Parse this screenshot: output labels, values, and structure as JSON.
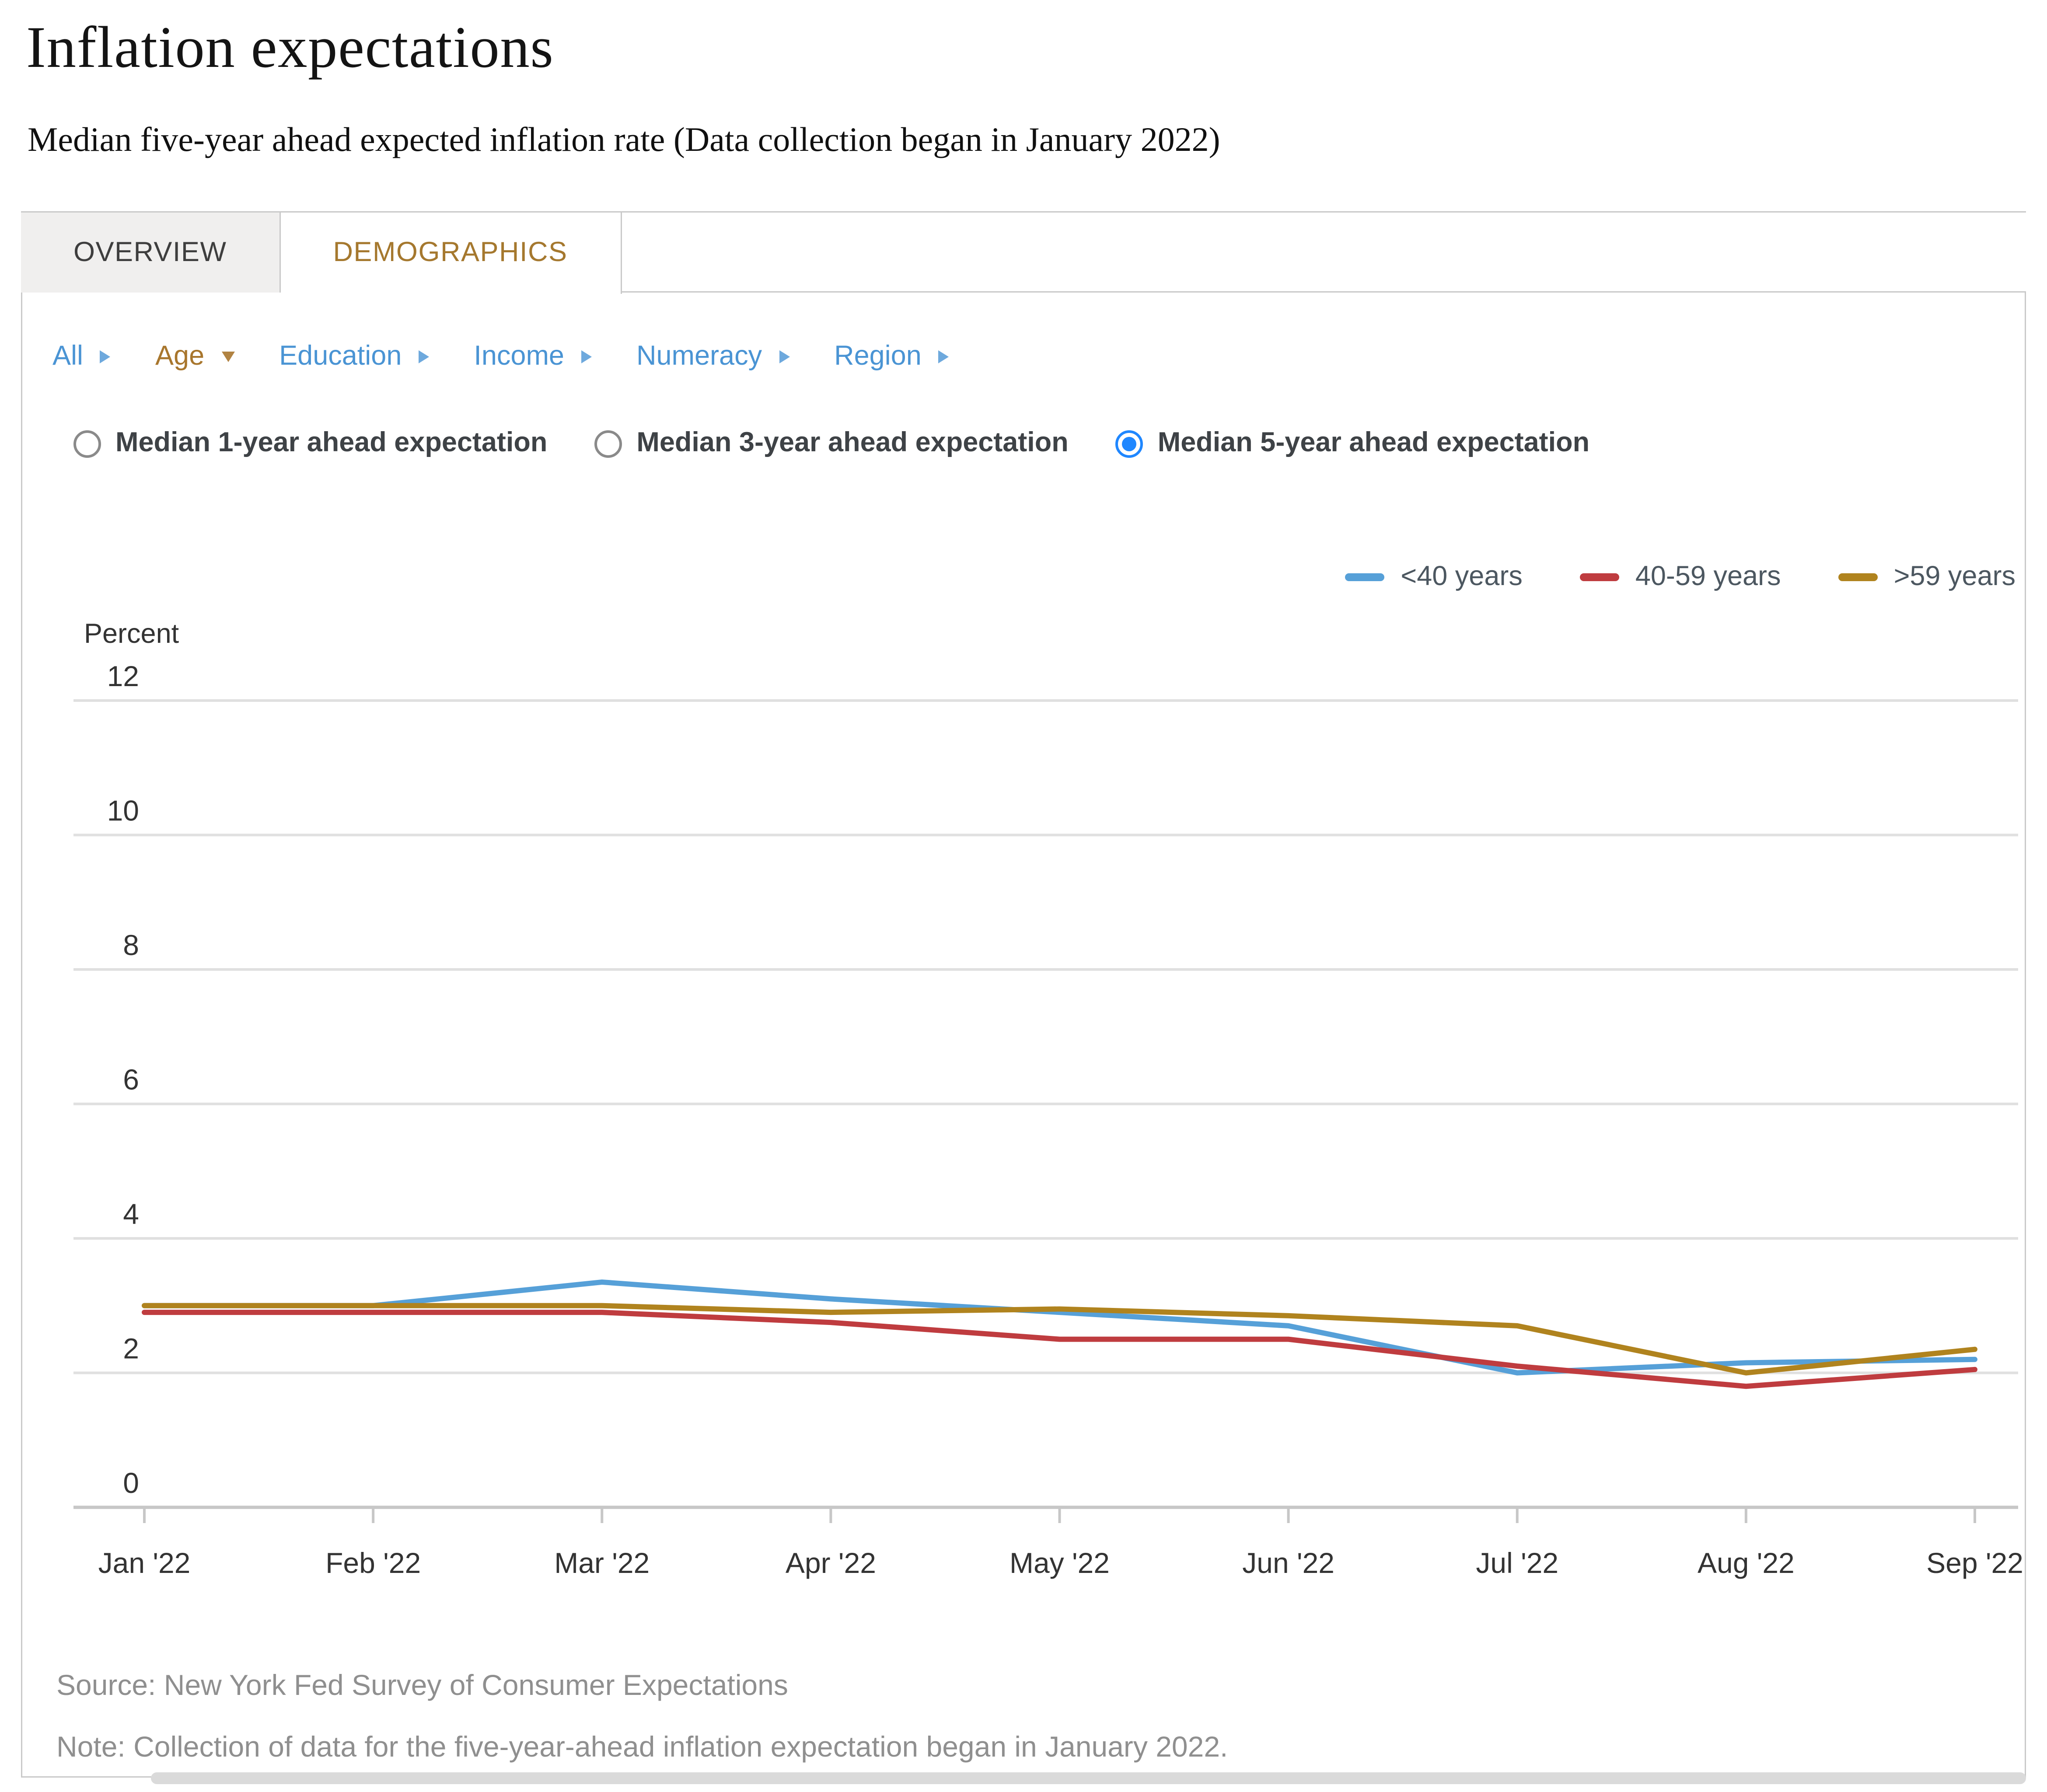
{
  "page": {
    "title": "Inflation expectations",
    "subtitle": "Median five-year ahead expected inflation rate (Data collection began in January 2022)"
  },
  "tabs": [
    {
      "label": "OVERVIEW",
      "active": false
    },
    {
      "label": "DEMOGRAPHICS",
      "active": true
    }
  ],
  "filters": {
    "items": [
      {
        "label": "All",
        "active": false,
        "arrow": "right"
      },
      {
        "label": "Age",
        "active": true,
        "arrow": "down"
      },
      {
        "label": "Education",
        "active": false,
        "arrow": "right"
      },
      {
        "label": "Income",
        "active": false,
        "arrow": "right"
      },
      {
        "label": "Numeracy",
        "active": false,
        "arrow": "right"
      },
      {
        "label": "Region",
        "active": false,
        "arrow": "right"
      }
    ],
    "link_color": "#4a94d4",
    "active_color": "#a8762d"
  },
  "radios": {
    "options": [
      {
        "label": "Median 1-year ahead expectation",
        "selected": false
      },
      {
        "label": "Median 3-year ahead expectation",
        "selected": false
      },
      {
        "label": "Median 5-year ahead expectation",
        "selected": true
      }
    ],
    "selected_color": "#1f87ff"
  },
  "legend": [
    {
      "label": "<40 years",
      "color": "#56a0d8"
    },
    {
      "label": "40-59 years",
      "color": "#bf3c3f"
    },
    {
      "label": ">59 years",
      "color": "#b0831e"
    }
  ],
  "chart_data": {
    "type": "line",
    "title": "",
    "xlabel": "",
    "ylabel": "Percent",
    "x_categories": [
      "Jan '22",
      "Feb '22",
      "Mar '22",
      "Apr '22",
      "May '22",
      "Jun '22",
      "Jul '22",
      "Aug '22",
      "Sep '22"
    ],
    "series": [
      {
        "name": "<40 years",
        "color": "#56a0d8",
        "values": [
          3.0,
          3.0,
          3.35,
          3.1,
          2.9,
          2.7,
          2.0,
          2.15,
          2.2
        ]
      },
      {
        "name": "40-59 years",
        "color": "#bf3c3f",
        "values": [
          2.9,
          2.9,
          2.9,
          2.75,
          2.5,
          2.5,
          2.1,
          1.8,
          2.05
        ]
      },
      {
        "name": ">59 years",
        "color": "#b0831e",
        "values": [
          3.0,
          3.0,
          3.0,
          2.9,
          2.95,
          2.85,
          2.7,
          2.0,
          2.35
        ]
      }
    ],
    "ylim": [
      0,
      12
    ],
    "ytick_step": 2,
    "grid": true,
    "legend_position": "top-right",
    "gridline_color": "#e0e0e0",
    "axis_color": "#c7c7c7",
    "tick_label_color": "#333333"
  },
  "footer": {
    "source": "Source: New York Fed Survey of Consumer Expectations",
    "note": "Note: Collection of data for the five-year-ahead inflation expectation began in January 2022."
  }
}
